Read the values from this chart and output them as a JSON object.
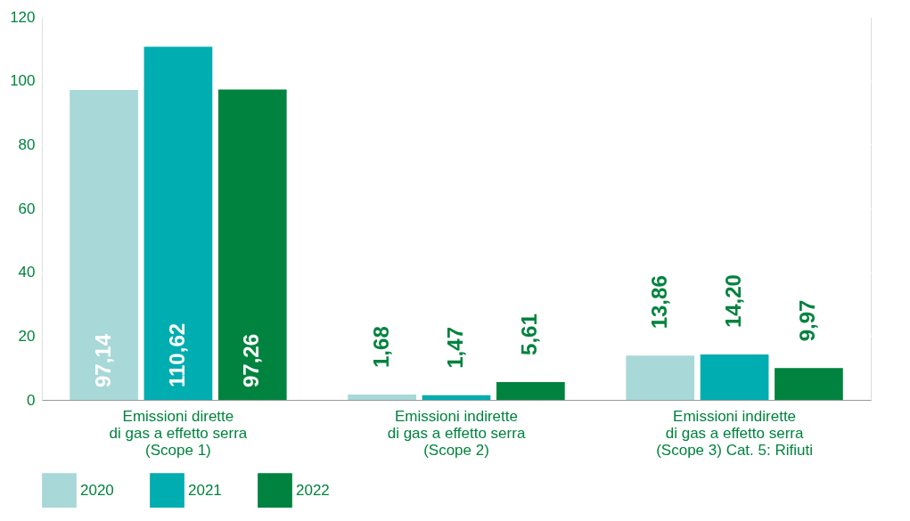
{
  "chart_data": {
    "type": "bar",
    "categories": [
      "Emissioni dirette\ndi gas a effetto serra\n(Scope 1)",
      "Emissioni indirette\ndi gas a effetto serra\n(Scope 2)",
      "Emissioni indirette\ndi gas a effetto serra\n(Scope 3) Cat. 5: Rifiuti"
    ],
    "series": [
      {
        "name": "2020",
        "color": "#a8d8d8",
        "values": [
          97.14,
          1.68,
          13.86
        ],
        "value_labels": [
          "97,14",
          "1,68",
          "13,86"
        ]
      },
      {
        "name": "2021",
        "color": "#00adb0",
        "values": [
          110.62,
          1.47,
          14.2
        ],
        "value_labels": [
          "110,62",
          "1,47",
          "14,20"
        ]
      },
      {
        "name": "2022",
        "color": "#00833e",
        "values": [
          97.26,
          5.61,
          9.97
        ],
        "value_labels": [
          "97,26",
          "5,61",
          "9,97"
        ]
      }
    ],
    "ylim": [
      0,
      120
    ],
    "yticks": [
      0,
      20,
      40,
      60,
      80,
      100,
      120
    ],
    "grid": "y",
    "legend": "bottom left"
  }
}
